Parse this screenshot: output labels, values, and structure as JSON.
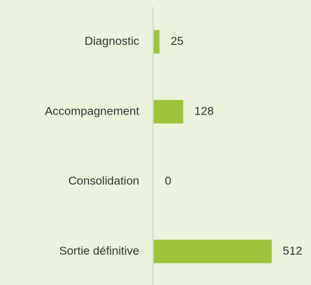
{
  "chart_data": {
    "type": "bar",
    "orientation": "horizontal",
    "categories": [
      "Diagnostic",
      "Accompagnement",
      "Consolidation",
      "Sortie définitive"
    ],
    "values": [
      25,
      128,
      0,
      512
    ],
    "color": "#9dc33b"
  }
}
